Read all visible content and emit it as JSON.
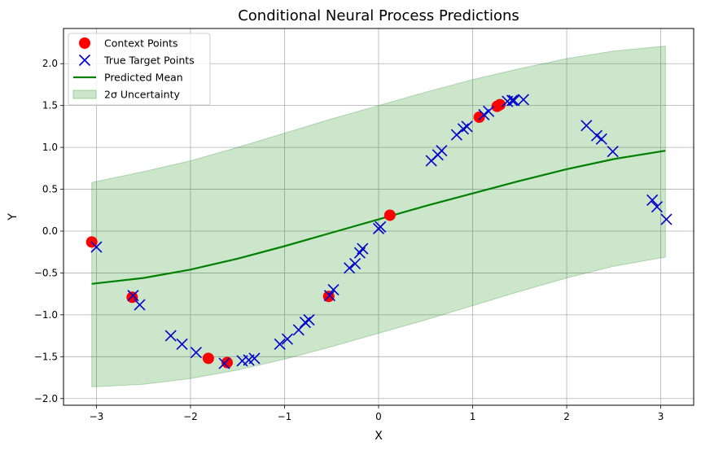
{
  "chart_data": {
    "type": "scatter",
    "title": "Conditional Neural Process Predictions",
    "xlabel": "X",
    "ylabel": "Y",
    "xlim": [
      -3.35,
      3.35
    ],
    "ylim": [
      -2.08,
      2.42
    ],
    "xticks": [
      -3,
      -2,
      -1,
      0,
      1,
      2,
      3
    ],
    "xtick_labels": [
      "−3",
      "−2",
      "−1",
      "0",
      "1",
      "2",
      "3"
    ],
    "yticks": [
      -2.0,
      -1.5,
      -1.0,
      -0.5,
      0.0,
      0.5,
      1.0,
      1.5,
      2.0
    ],
    "ytick_labels": [
      "−2.0",
      "−1.5",
      "−1.0",
      "−0.5",
      "0.0",
      "0.5",
      "1.0",
      "1.5",
      "2.0"
    ],
    "grid": true,
    "legend_position": "top-left",
    "series": [
      {
        "name": "Context Points",
        "kind": "scatter",
        "marker": "circle",
        "color": "#ff0000",
        "points": [
          [
            -3.05,
            -0.13
          ],
          [
            -2.62,
            -0.79
          ],
          [
            -1.81,
            -1.52
          ],
          [
            -1.61,
            -1.57
          ],
          [
            -0.53,
            -0.78
          ],
          [
            0.12,
            0.19
          ],
          [
            1.07,
            1.36
          ],
          [
            1.26,
            1.49
          ],
          [
            1.29,
            1.51
          ]
        ]
      },
      {
        "name": "True Target Points",
        "kind": "scatter",
        "marker": "x",
        "color": "#0000cc",
        "points": [
          [
            -3.0,
            -0.19
          ],
          [
            -2.61,
            -0.77
          ],
          [
            -2.54,
            -0.88
          ],
          [
            -2.21,
            -1.25
          ],
          [
            -2.09,
            -1.35
          ],
          [
            -1.94,
            -1.45
          ],
          [
            -1.64,
            -1.58
          ],
          [
            -1.45,
            -1.55
          ],
          [
            -1.38,
            -1.54
          ],
          [
            -1.32,
            -1.52
          ],
          [
            -1.05,
            -1.35
          ],
          [
            -0.97,
            -1.29
          ],
          [
            -0.85,
            -1.18
          ],
          [
            -0.78,
            -1.09
          ],
          [
            -0.74,
            -1.06
          ],
          [
            -0.52,
            -0.77
          ],
          [
            -0.48,
            -0.7
          ],
          [
            -0.31,
            -0.44
          ],
          [
            -0.25,
            -0.39
          ],
          [
            -0.2,
            -0.26
          ],
          [
            -0.17,
            -0.21
          ],
          [
            0.0,
            0.03
          ],
          [
            0.02,
            0.05
          ],
          [
            0.56,
            0.84
          ],
          [
            0.63,
            0.91
          ],
          [
            0.67,
            0.96
          ],
          [
            0.83,
            1.15
          ],
          [
            0.9,
            1.22
          ],
          [
            0.94,
            1.25
          ],
          [
            1.12,
            1.39
          ],
          [
            1.17,
            1.43
          ],
          [
            1.37,
            1.55
          ],
          [
            1.42,
            1.56
          ],
          [
            1.44,
            1.56
          ],
          [
            1.54,
            1.57
          ],
          [
            2.21,
            1.26
          ],
          [
            2.32,
            1.14
          ],
          [
            2.37,
            1.1
          ],
          [
            2.49,
            0.95
          ],
          [
            2.91,
            0.37
          ],
          [
            2.96,
            0.29
          ],
          [
            3.06,
            0.14
          ]
        ]
      },
      {
        "name": "Predicted Mean",
        "kind": "line",
        "color": "#008000",
        "x": [
          -3.05,
          -2.5,
          -2.0,
          -1.5,
          -1.0,
          -0.5,
          0.0,
          0.5,
          1.0,
          1.5,
          2.0,
          2.5,
          3.05
        ],
        "y": [
          -0.63,
          -0.56,
          -0.46,
          -0.33,
          -0.18,
          -0.02,
          0.14,
          0.3,
          0.45,
          0.6,
          0.74,
          0.86,
          0.96
        ]
      },
      {
        "name": "2σ Uncertainty",
        "kind": "band",
        "color": "#008000",
        "x": [
          -3.05,
          -2.5,
          -2.0,
          -1.5,
          -1.0,
          -0.5,
          0.0,
          0.5,
          1.0,
          1.5,
          2.0,
          2.5,
          3.05
        ],
        "lower": [
          -1.86,
          -1.83,
          -1.76,
          -1.66,
          -1.53,
          -1.38,
          -1.22,
          -1.06,
          -0.89,
          -0.72,
          -0.56,
          -0.42,
          -0.31
        ],
        "upper": [
          0.58,
          0.71,
          0.84,
          1.0,
          1.17,
          1.34,
          1.5,
          1.66,
          1.81,
          1.94,
          2.06,
          2.15,
          2.21
        ]
      }
    ]
  }
}
